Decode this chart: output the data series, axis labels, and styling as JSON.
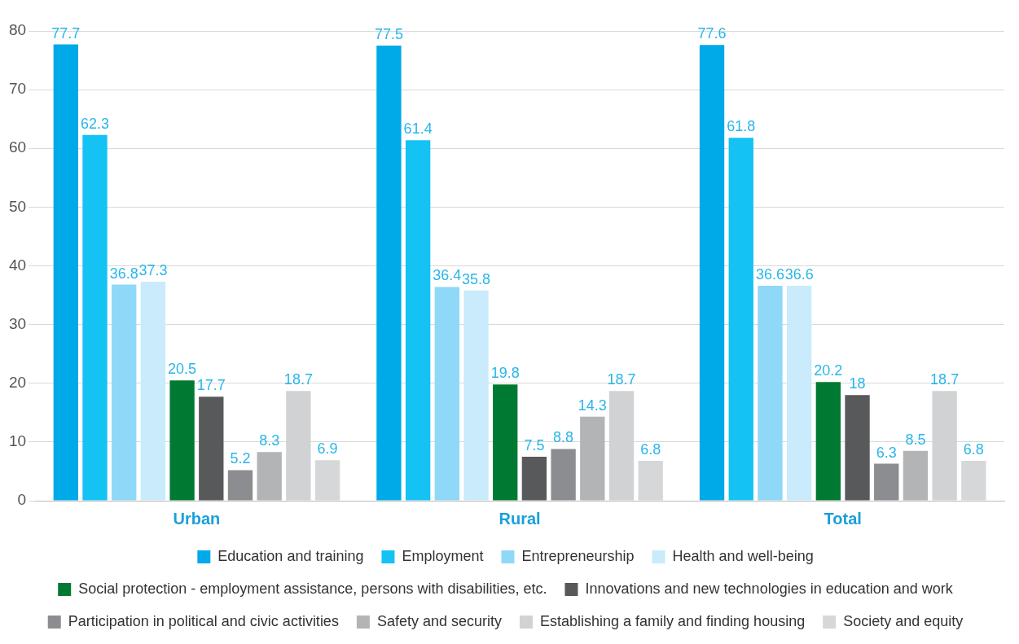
{
  "chart_data": {
    "type": "bar",
    "categories": [
      "Urban",
      "Rural",
      "Total"
    ],
    "series": [
      {
        "name": "Education and training",
        "color": "#00a9e8",
        "values": [
          77.7,
          77.5,
          77.6
        ]
      },
      {
        "name": "Employment",
        "color": "#14c2f3",
        "values": [
          62.3,
          61.4,
          61.8
        ]
      },
      {
        "name": "Entrepreneurship",
        "color": "#8fd8f7",
        "values": [
          36.8,
          36.4,
          36.6
        ]
      },
      {
        "name": "Health and well-being",
        "color": "#c9ebfb",
        "values": [
          37.3,
          35.8,
          36.6
        ]
      },
      {
        "name": "Social protection - employment assistance, persons with disabilities, etc.",
        "color": "#007a33",
        "values": [
          20.5,
          19.8,
          20.2
        ]
      },
      {
        "name": "Innovations and new technologies in education and work",
        "color": "#58595b",
        "values": [
          17.7,
          7.5,
          18
        ]
      },
      {
        "name": "Participation in political and civic activities",
        "color": "#8c8d90",
        "values": [
          5.2,
          8.8,
          6.3
        ]
      },
      {
        "name": "Safety and security",
        "color": "#b3b4b6",
        "values": [
          8.3,
          14.3,
          8.5
        ]
      },
      {
        "name": "Establishing a family and finding housing",
        "color": "#d1d2d4",
        "values": [
          18.7,
          18.7,
          18.7
        ]
      },
      {
        "name": "Society and equity",
        "color": "#d6d7d9",
        "values": [
          6.9,
          6.8,
          6.8
        ]
      }
    ],
    "ylim": [
      0,
      80
    ],
    "yticks": [
      0,
      10,
      20,
      30,
      40,
      50,
      60,
      70,
      80
    ],
    "grid": "y",
    "legend": "bottom",
    "data_labels": true
  }
}
